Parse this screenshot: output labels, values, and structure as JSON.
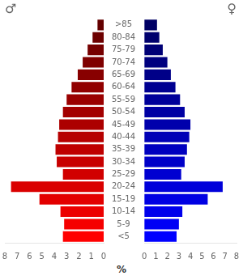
{
  "chart_data": {
    "type": "bar",
    "orientation": "horizontal",
    "categories": [
      ">85",
      "80-84",
      "75-79",
      "70-74",
      "65-69",
      "60-64",
      "55-59",
      "50-54",
      "45-49",
      "40-44",
      "35-39",
      "30-34",
      "25-29",
      "20-24",
      "15-19",
      "10-14",
      "5-9",
      "<5"
    ],
    "series": [
      {
        "name": "♂",
        "values": [
          0.5,
          0.9,
          1.3,
          1.7,
          2.1,
          2.6,
          3.0,
          3.3,
          3.6,
          3.7,
          3.9,
          3.8,
          3.3,
          7.5,
          5.2,
          3.5,
          3.2,
          3.3
        ],
        "colors": [
          "#640000",
          "#6d0000",
          "#760000",
          "#7f0000",
          "#880000",
          "#910000",
          "#9a0000",
          "#a30000",
          "#ac0000",
          "#b60000",
          "#bf0000",
          "#c80000",
          "#d10000",
          "#da0000",
          "#e30000",
          "#ec0000",
          "#f50000",
          "#ff0000"
        ]
      },
      {
        "name": "♀",
        "values": [
          1.1,
          1.3,
          1.6,
          2.0,
          2.3,
          2.7,
          3.1,
          3.5,
          4.0,
          3.9,
          3.7,
          3.5,
          3.2,
          6.8,
          5.5,
          3.3,
          3.0,
          2.8
        ],
        "colors": [
          "#000064",
          "#00006d",
          "#000076",
          "#00007f",
          "#000088",
          "#000091",
          "#00009a",
          "#0000a3",
          "#0000ac",
          "#0000b6",
          "#0000bf",
          "#0000c8",
          "#0000d1",
          "#0000da",
          "#0000e3",
          "#0000ec",
          "#0000f5",
          "#0000ff"
        ]
      }
    ],
    "xlim": [
      0,
      8
    ],
    "xticks": [
      0,
      1,
      2,
      3,
      4,
      5,
      6,
      7,
      8
    ],
    "xlabel": "%",
    "grid": false
  }
}
